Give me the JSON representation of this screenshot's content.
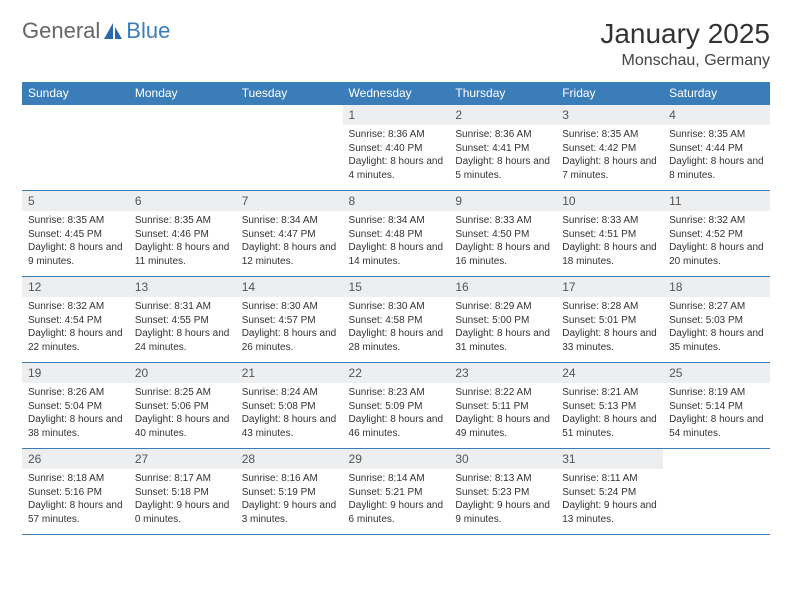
{
  "logo": {
    "general": "General",
    "blue": "Blue"
  },
  "title": "January 2025",
  "location": "Monschau, Germany",
  "colors": {
    "header_bg": "#3a7db8",
    "header_text": "#ffffff",
    "daynum_bg": "#eceef0",
    "text": "#333333",
    "border": "#3a7db8",
    "page_bg": "#ffffff"
  },
  "day_labels": [
    "Sunday",
    "Monday",
    "Tuesday",
    "Wednesday",
    "Thursday",
    "Friday",
    "Saturday"
  ],
  "weeks": [
    [
      null,
      null,
      null,
      {
        "n": "1",
        "sr": "8:36 AM",
        "ss": "4:40 PM",
        "dl": "8 hours and 4 minutes."
      },
      {
        "n": "2",
        "sr": "8:36 AM",
        "ss": "4:41 PM",
        "dl": "8 hours and 5 minutes."
      },
      {
        "n": "3",
        "sr": "8:35 AM",
        "ss": "4:42 PM",
        "dl": "8 hours and 7 minutes."
      },
      {
        "n": "4",
        "sr": "8:35 AM",
        "ss": "4:44 PM",
        "dl": "8 hours and 8 minutes."
      }
    ],
    [
      {
        "n": "5",
        "sr": "8:35 AM",
        "ss": "4:45 PM",
        "dl": "8 hours and 9 minutes."
      },
      {
        "n": "6",
        "sr": "8:35 AM",
        "ss": "4:46 PM",
        "dl": "8 hours and 11 minutes."
      },
      {
        "n": "7",
        "sr": "8:34 AM",
        "ss": "4:47 PM",
        "dl": "8 hours and 12 minutes."
      },
      {
        "n": "8",
        "sr": "8:34 AM",
        "ss": "4:48 PM",
        "dl": "8 hours and 14 minutes."
      },
      {
        "n": "9",
        "sr": "8:33 AM",
        "ss": "4:50 PM",
        "dl": "8 hours and 16 minutes."
      },
      {
        "n": "10",
        "sr": "8:33 AM",
        "ss": "4:51 PM",
        "dl": "8 hours and 18 minutes."
      },
      {
        "n": "11",
        "sr": "8:32 AM",
        "ss": "4:52 PM",
        "dl": "8 hours and 20 minutes."
      }
    ],
    [
      {
        "n": "12",
        "sr": "8:32 AM",
        "ss": "4:54 PM",
        "dl": "8 hours and 22 minutes."
      },
      {
        "n": "13",
        "sr": "8:31 AM",
        "ss": "4:55 PM",
        "dl": "8 hours and 24 minutes."
      },
      {
        "n": "14",
        "sr": "8:30 AM",
        "ss": "4:57 PM",
        "dl": "8 hours and 26 minutes."
      },
      {
        "n": "15",
        "sr": "8:30 AM",
        "ss": "4:58 PM",
        "dl": "8 hours and 28 minutes."
      },
      {
        "n": "16",
        "sr": "8:29 AM",
        "ss": "5:00 PM",
        "dl": "8 hours and 31 minutes."
      },
      {
        "n": "17",
        "sr": "8:28 AM",
        "ss": "5:01 PM",
        "dl": "8 hours and 33 minutes."
      },
      {
        "n": "18",
        "sr": "8:27 AM",
        "ss": "5:03 PM",
        "dl": "8 hours and 35 minutes."
      }
    ],
    [
      {
        "n": "19",
        "sr": "8:26 AM",
        "ss": "5:04 PM",
        "dl": "8 hours and 38 minutes."
      },
      {
        "n": "20",
        "sr": "8:25 AM",
        "ss": "5:06 PM",
        "dl": "8 hours and 40 minutes."
      },
      {
        "n": "21",
        "sr": "8:24 AM",
        "ss": "5:08 PM",
        "dl": "8 hours and 43 minutes."
      },
      {
        "n": "22",
        "sr": "8:23 AM",
        "ss": "5:09 PM",
        "dl": "8 hours and 46 minutes."
      },
      {
        "n": "23",
        "sr": "8:22 AM",
        "ss": "5:11 PM",
        "dl": "8 hours and 49 minutes."
      },
      {
        "n": "24",
        "sr": "8:21 AM",
        "ss": "5:13 PM",
        "dl": "8 hours and 51 minutes."
      },
      {
        "n": "25",
        "sr": "8:19 AM",
        "ss": "5:14 PM",
        "dl": "8 hours and 54 minutes."
      }
    ],
    [
      {
        "n": "26",
        "sr": "8:18 AM",
        "ss": "5:16 PM",
        "dl": "8 hours and 57 minutes."
      },
      {
        "n": "27",
        "sr": "8:17 AM",
        "ss": "5:18 PM",
        "dl": "9 hours and 0 minutes."
      },
      {
        "n": "28",
        "sr": "8:16 AM",
        "ss": "5:19 PM",
        "dl": "9 hours and 3 minutes."
      },
      {
        "n": "29",
        "sr": "8:14 AM",
        "ss": "5:21 PM",
        "dl": "9 hours and 6 minutes."
      },
      {
        "n": "30",
        "sr": "8:13 AM",
        "ss": "5:23 PM",
        "dl": "9 hours and 9 minutes."
      },
      {
        "n": "31",
        "sr": "8:11 AM",
        "ss": "5:24 PM",
        "dl": "9 hours and 13 minutes."
      },
      null
    ]
  ],
  "labels": {
    "sunrise": "Sunrise:",
    "sunset": "Sunset:",
    "daylight": "Daylight:"
  }
}
